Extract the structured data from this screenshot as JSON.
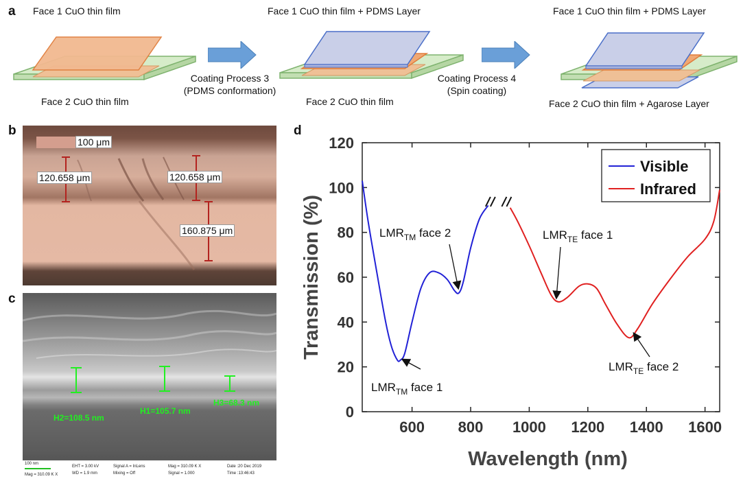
{
  "panel_a": {
    "label": "a",
    "step1_top": "Face 1 CuO thin film",
    "step1_bottom": "Face 2 CuO thin film",
    "arrow1_line1": "Coating Process 3",
    "arrow1_line2": "(PDMS conformation)",
    "step2_top": "Face 1 CuO thin film + PDMS Layer",
    "step2_bottom": "Face 2 CuO thin film",
    "arrow2_line1": "Coating Process 4",
    "arrow2_line2": "(Spin coating)",
    "step3_top": "Face 1 CuO thin film + PDMS Layer",
    "step3_bottom": "Face 2 CuO thin film + Agarose Layer"
  },
  "panel_b": {
    "label": "b",
    "scale": "100 μm",
    "m1": "120.658 μm",
    "m2": "120.658 μm",
    "m3": "160.875 μm"
  },
  "panel_c": {
    "label": "c",
    "h2": "H2=108.5 nm",
    "h1": "H1=105.7 nm",
    "h3": "H3=68.3 nm",
    "scale": "100 nm",
    "mag_left": "Mag = 310.09 K X",
    "eht": "EHT = 3.00 kV",
    "wd": "WD = 1.9 mm",
    "signal_a": "Signal A = InLens",
    "mixing": "Mixing = Off",
    "mag": "Mag = 310.09 K X",
    "signal": "Signal = 1.000",
    "date": "Date :20 Dec 2019",
    "time": "Time :13:46:43"
  },
  "panel_d": {
    "label": "d",
    "annotations": {
      "tm1_main": "LMR",
      "tm1_sub": "TM",
      "tm1_rest": " face 1",
      "tm2_main": "LMR",
      "tm2_sub": "TM",
      "tm2_rest": " face 2",
      "te1_main": "LMR",
      "te1_sub": "TE",
      "te1_rest": " face 1",
      "te2_main": "LMR",
      "te2_sub": "TE",
      "te2_rest": " face 2"
    }
  },
  "chart_data": {
    "type": "line",
    "xlabel": "Wavelength (nm)",
    "ylabel": "Transmission (%)",
    "xlim": [
      430,
      1650
    ],
    "ylim": [
      0,
      120
    ],
    "xticks": [
      600,
      800,
      1000,
      1200,
      1400,
      1600
    ],
    "yticks": [
      0,
      20,
      40,
      60,
      80,
      100,
      120
    ],
    "legend_position": "top-right",
    "series": [
      {
        "name": "Visible",
        "color": "#2121d6",
        "x": [
          430,
          450,
          480,
          510,
          530,
          550,
          560,
          575,
          600,
          630,
          660,
          690,
          720,
          745,
          760,
          775,
          800,
          830,
          860
        ],
        "y": [
          103,
          85,
          62,
          40,
          29,
          23,
          23,
          26,
          40,
          55,
          62,
          62,
          59,
          54,
          53,
          58,
          73,
          86,
          92
        ]
      },
      {
        "name": "Infrared",
        "color": "#e02020",
        "x": [
          935,
          960,
          1000,
          1040,
          1075,
          1100,
          1130,
          1170,
          1200,
          1230,
          1260,
          1300,
          1340,
          1370,
          1420,
          1480,
          1540,
          1600,
          1630,
          1650
        ],
        "y": [
          91,
          85,
          74,
          62,
          52,
          49,
          51,
          56,
          57,
          55,
          48,
          39,
          33,
          37,
          48,
          59,
          69,
          77,
          85,
          99
        ]
      }
    ]
  }
}
